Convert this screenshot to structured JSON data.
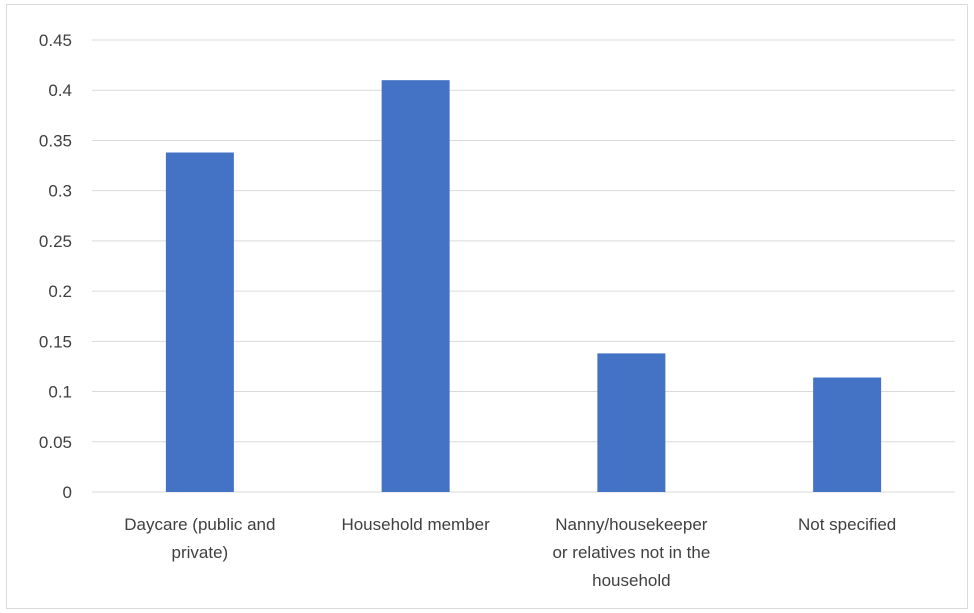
{
  "chart_data": {
    "type": "bar",
    "categories": [
      "Daycare (public and private)",
      "Household member",
      "Nanny/housekeeper or relatives not in the household",
      "Not specified"
    ],
    "category_lines": [
      [
        "Daycare (public and",
        "private)"
      ],
      [
        "Household member"
      ],
      [
        "Nanny/housekeeper",
        "or relatives not in the",
        "household"
      ],
      [
        "Not specified"
      ]
    ],
    "values": [
      0.338,
      0.41,
      0.138,
      0.114
    ],
    "title": "",
    "xlabel": "",
    "ylabel": "",
    "ylim": [
      0,
      0.45
    ],
    "yticks": [
      "0",
      "0.05",
      "0.1",
      "0.15",
      "0.2",
      "0.25",
      "0.3",
      "0.35",
      "0.4",
      "0.45"
    ],
    "grid": true,
    "legend": "none",
    "bar_color": "#4472C4",
    "grid_color": "#d9d9d9"
  }
}
